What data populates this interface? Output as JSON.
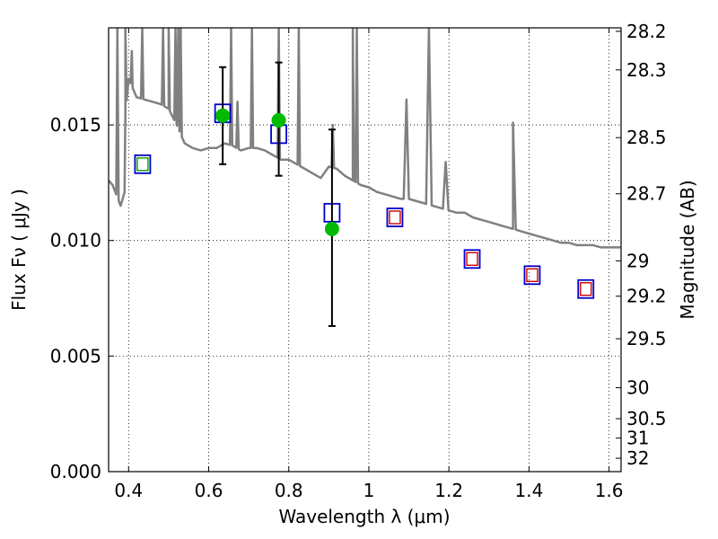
{
  "chart_data": {
    "type": "scatter",
    "xlabel": "Wavelength  λ (μm)",
    "ylabel": "Flux  Fν  ( μJy )",
    "y2label": "Magnitude (AB)",
    "xlim": [
      0.35,
      1.63
    ],
    "ylim": [
      0.0,
      0.0192
    ],
    "grid": true,
    "x_ticks": [
      0.4,
      0.6,
      0.8,
      1.0,
      1.2,
      1.4,
      1.6
    ],
    "x_tick_labels": [
      "0.4",
      "0.6",
      "0.8",
      "1",
      "1.2",
      "1.4",
      "1.6"
    ],
    "y_ticks": [
      0.0,
      0.005,
      0.01,
      0.015
    ],
    "y_tick_labels": [
      "0.000",
      "0.005",
      "0.010",
      "0.015"
    ],
    "magnitude_ticks": [
      {
        "label": "28.2",
        "flux": 0.01905
      },
      {
        "label": "28.3",
        "flux": 0.01738
      },
      {
        "label": "28.5",
        "flux": 0.01445
      },
      {
        "label": "28.7",
        "flux": 0.01202
      },
      {
        "label": "29",
        "flux": 0.00912
      },
      {
        "label": "29.2",
        "flux": 0.00759
      },
      {
        "label": "29.5",
        "flux": 0.00575
      },
      {
        "label": "30",
        "flux": 0.00363
      },
      {
        "label": "30.5",
        "flux": 0.00229
      },
      {
        "label": "31",
        "flux": 0.00145
      },
      {
        "label": "32",
        "flux": 0.00058
      }
    ],
    "series": [
      {
        "style": "sed-line",
        "color": "#808080",
        "x": [
          0.35,
          0.36,
          0.38,
          0.39,
          0.392,
          0.4,
          0.41,
          0.42,
          0.44,
          0.46,
          0.48,
          0.5,
          0.52,
          0.54,
          0.56,
          0.58,
          0.6,
          0.62,
          0.64,
          0.66,
          0.68,
          0.7,
          0.72,
          0.74,
          0.76,
          0.78,
          0.8,
          0.82,
          0.84,
          0.86,
          0.88,
          0.9,
          0.92,
          0.94,
          0.96,
          0.98,
          1.0,
          1.02,
          1.04,
          1.06,
          1.08,
          1.1,
          1.12,
          1.14,
          1.16,
          1.18,
          1.2,
          1.22,
          1.24,
          1.26,
          1.28,
          1.3,
          1.32,
          1.34,
          1.36,
          1.38,
          1.4,
          1.42,
          1.44,
          1.46,
          1.48,
          1.5,
          1.52,
          1.54,
          1.56,
          1.58,
          1.6,
          1.63
        ],
        "y": [
          0.0126,
          0.0124,
          0.0115,
          0.0121,
          0.0155,
          0.017,
          0.0166,
          0.0162,
          0.0161,
          0.016,
          0.0159,
          0.0157,
          0.015,
          0.0142,
          0.014,
          0.0139,
          0.014,
          0.014,
          0.0142,
          0.0141,
          0.0139,
          0.014,
          0.014,
          0.0139,
          0.0137,
          0.0135,
          0.0135,
          0.0133,
          0.0131,
          0.0129,
          0.0127,
          0.0132,
          0.0131,
          0.0128,
          0.0126,
          0.0124,
          0.0123,
          0.0121,
          0.012,
          0.0119,
          0.0118,
          0.0118,
          0.0117,
          0.0116,
          0.0115,
          0.0114,
          0.0113,
          0.0112,
          0.0112,
          0.011,
          0.0109,
          0.0108,
          0.0107,
          0.0106,
          0.0105,
          0.0104,
          0.0103,
          0.0102,
          0.0101,
          0.01,
          0.0099,
          0.0099,
          0.0098,
          0.0098,
          0.0098,
          0.0097,
          0.0097,
          0.0097
        ],
        "emission_lines": [
          {
            "x": 0.372,
            "peak": 0.0192
          },
          {
            "x": 0.392,
            "peak": 0.0192
          },
          {
            "x": 0.408,
            "peak": 0.0182
          },
          {
            "x": 0.434,
            "peak": 0.0192
          },
          {
            "x": 0.486,
            "peak": 0.0192
          },
          {
            "x": 0.5,
            "peak": 0.0192
          },
          {
            "x": 0.517,
            "peak": 0.0192
          },
          {
            "x": 0.524,
            "peak": 0.0192
          },
          {
            "x": 0.53,
            "peak": 0.0192
          },
          {
            "x": 0.656,
            "peak": 0.0192
          },
          {
            "x": 0.672,
            "peak": 0.016
          },
          {
            "x": 0.708,
            "peak": 0.0192
          },
          {
            "x": 0.775,
            "peak": 0.0192
          },
          {
            "x": 0.825,
            "peak": 0.0192
          },
          {
            "x": 0.91,
            "peak": 0.015
          },
          {
            "x": 0.96,
            "peak": 0.0192
          },
          {
            "x": 0.97,
            "peak": 0.0192
          },
          {
            "x": 1.094,
            "peak": 0.0161
          },
          {
            "x": 1.15,
            "peak": 0.0192
          },
          {
            "x": 1.192,
            "peak": 0.0134
          },
          {
            "x": 1.36,
            "peak": 0.0151
          }
        ]
      },
      {
        "style": "blue-squares",
        "color": "#0000cc",
        "x": [
          0.435,
          0.635,
          0.775,
          0.908,
          1.065,
          1.258,
          1.408,
          1.542
        ],
        "y": [
          0.0133,
          0.0155,
          0.0146,
          0.0112,
          0.011,
          0.0092,
          0.0085,
          0.0079
        ]
      },
      {
        "style": "green-squares",
        "color": "#00a000",
        "x": [
          0.435
        ],
        "y": [
          0.0133
        ]
      },
      {
        "style": "red-squares",
        "color": "#cc0000",
        "x": [
          1.065,
          1.258,
          1.408,
          1.542
        ],
        "y": [
          0.011,
          0.0092,
          0.0085,
          0.0079
        ]
      },
      {
        "style": "green-dots-errorbars",
        "color": "#00bb00",
        "x": [
          0.635,
          0.775,
          0.908
        ],
        "y": [
          0.0154,
          0.0152,
          0.0105
        ],
        "err_low": [
          0.0133,
          0.0128,
          0.0063
        ],
        "err_high": [
          0.0175,
          0.0177,
          0.0148
        ]
      }
    ]
  }
}
